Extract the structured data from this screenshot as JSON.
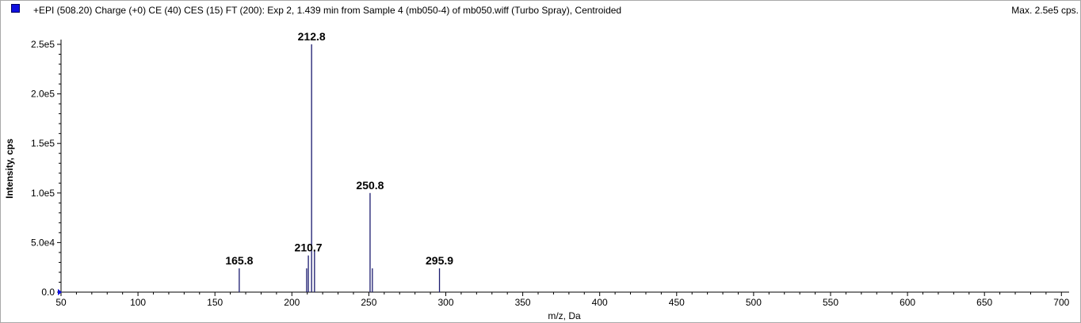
{
  "header": {
    "title": "+EPI (508.20) Charge (+0) CE (40) CES (15) FT (200): Exp 2, 1.439 min from Sample 4 (mb050-4) of mb050.wiff (Turbo Spray), Centroided",
    "max_label": "Max. 2.5e5 cps.",
    "legend_color": "#1010e0"
  },
  "chart_data": {
    "type": "bar",
    "title": "+EPI (508.20) Charge (+0) CE (40) CES (15) FT (200): Exp 2, 1.439 min from Sample 4 (mb050-4) of mb050.wiff (Turbo Spray), Centroided",
    "xlabel": "m/z, Da",
    "ylabel": "Intensity, cps",
    "xlim": [
      50,
      705
    ],
    "ylim": [
      0,
      250000
    ],
    "xticks": [
      50,
      100,
      150,
      200,
      250,
      300,
      350,
      400,
      450,
      500,
      550,
      600,
      650,
      700
    ],
    "xtick_labels": [
      "50",
      "100",
      "150",
      "200",
      "250",
      "300",
      "350",
      "400",
      "450",
      "500",
      "550",
      "600",
      "650",
      "700"
    ],
    "yticks": [
      0,
      50000,
      100000,
      150000,
      200000,
      250000
    ],
    "ytick_labels": [
      "0.0",
      "5.0e4",
      "1.0e5",
      "1.5e5",
      "2.0e5",
      "2.5e5"
    ],
    "grid": false,
    "bar_color": "#1a1a6e",
    "peaks": [
      {
        "mz": 165.8,
        "intensity": 24000,
        "label": "165.8"
      },
      {
        "mz": 209.6,
        "intensity": 24000,
        "label": ""
      },
      {
        "mz": 210.7,
        "intensity": 37000,
        "label": "210.7"
      },
      {
        "mz": 212.8,
        "intensity": 250000,
        "label": "212.8"
      },
      {
        "mz": 214.7,
        "intensity": 42000,
        "label": ""
      },
      {
        "mz": 250.8,
        "intensity": 100000,
        "label": "250.8"
      },
      {
        "mz": 252.3,
        "intensity": 24000,
        "label": ""
      },
      {
        "mz": 295.9,
        "intensity": 24000,
        "label": "295.9"
      }
    ]
  }
}
